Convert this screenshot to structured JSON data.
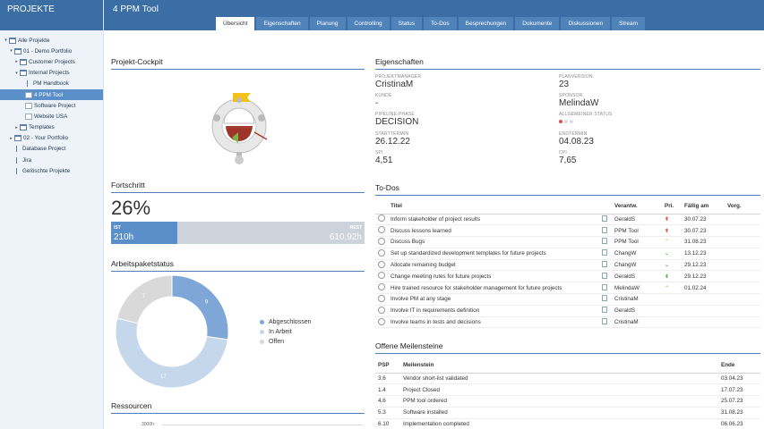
{
  "sidebar": {
    "title": "PROJEKTE",
    "items": [
      {
        "label": "Alle Projekte",
        "twisty": "▾",
        "icon": "folder",
        "indent": 0
      },
      {
        "label": "01 - Demo Portfolio",
        "twisty": "▾",
        "icon": "folder",
        "indent": 1
      },
      {
        "label": "Customer Projects",
        "twisty": "▸",
        "icon": "folder",
        "indent": 2
      },
      {
        "label": "Internal Projects",
        "twisty": "▾",
        "icon": "folder",
        "indent": 2
      },
      {
        "label": "PM Handbook",
        "twisty": "",
        "icon": "proj",
        "indent": 3
      },
      {
        "label": "4 PPM Tool",
        "twisty": "",
        "icon": "doc",
        "indent": 3,
        "selected": true
      },
      {
        "label": "Software Project",
        "twisty": "",
        "icon": "doc",
        "indent": 3
      },
      {
        "label": "Website USA",
        "twisty": "",
        "icon": "doc",
        "indent": 3
      },
      {
        "label": "Templates",
        "twisty": "▸",
        "icon": "folder",
        "indent": 2
      },
      {
        "label": "02 - Your Portfolio",
        "twisty": "▸",
        "icon": "folder",
        "indent": 1
      },
      {
        "label": "Database Project",
        "twisty": "",
        "icon": "proj",
        "indent": 1
      },
      {
        "label": "Jira",
        "twisty": "",
        "icon": "proj",
        "indent": 1
      },
      {
        "label": "Gelöschte Projekte",
        "twisty": "",
        "icon": "proj",
        "indent": 1
      }
    ]
  },
  "header": {
    "title": "4 PPM Tool",
    "tabs": [
      "Übersicht",
      "Eigenschaften",
      "Planung",
      "Controlling",
      "Status",
      "To-Dos",
      "Besprechungen",
      "Dokumente",
      "Diskussionen",
      "Stream"
    ],
    "active_tab": 0
  },
  "cockpit": {
    "title": "Projekt-Cockpit"
  },
  "progress": {
    "title": "Fortschritt",
    "percent_label": "26%",
    "fraction": 0.26,
    "ist_caption": "IST",
    "ist_value": "210h",
    "rest_caption": "REST",
    "rest_value": "610,92h"
  },
  "workpackages": {
    "title": "Arbeitspaketstatus",
    "chart_data": {
      "type": "pie",
      "categories": [
        "Abgeschlossen",
        "In Arbeit",
        "Offen"
      ],
      "values": [
        9,
        17,
        7
      ],
      "colors": [
        "#7ea6d6",
        "#c5d7ea",
        "#d9d9d9"
      ],
      "label_colors": [
        "#ffffff",
        "#ffffff",
        "#ffffff"
      ]
    }
  },
  "resources": {
    "title": "Ressourcen",
    "axis_label": "3000h"
  },
  "properties": {
    "title": "Eigenschaften",
    "fields": [
      {
        "caption": "PROJEKTMANAGER",
        "value": "CristinaM"
      },
      {
        "caption": "PLANVERSION",
        "value": "23"
      },
      {
        "caption": "KUNDE",
        "value": "-"
      },
      {
        "caption": "SPONSOR",
        "value": "MelindaW"
      },
      {
        "caption": "PIPELINE-PHASE",
        "value": "DECISION"
      },
      {
        "caption": "ALLGEMEINER STATUS",
        "value": ""
      },
      {
        "caption": "STARTTERMIN",
        "value": "26.12.22"
      },
      {
        "caption": "ENDTERMIN",
        "value": "04.08.23"
      },
      {
        "caption": "SPI",
        "value": "4,51"
      },
      {
        "caption": "CPI",
        "value": "7,65"
      }
    ],
    "status_colors": [
      "#d9534f",
      "#dddddd",
      "#dddddd"
    ]
  },
  "todos": {
    "title": "To-Dos",
    "headers": [
      "Titel",
      "Verantw.",
      "Pri.",
      "Fällig am",
      "Vorg."
    ],
    "rows": [
      {
        "title": "Inform stakeholder of project results",
        "owner": "GeraldS",
        "prio": "⇞",
        "prio_color": "#d9534f",
        "due": "30.07.23"
      },
      {
        "title": "Discuss lessons learned",
        "owner": "PPM Tool",
        "prio": "⇞",
        "prio_color": "#d9534f",
        "due": "30.07.23"
      },
      {
        "title": "Discuss Bugs",
        "owner": "PPM Tool",
        "prio": "⌃",
        "prio_color": "#f0ad4e",
        "due": "31.08.23"
      },
      {
        "title": "Set up standardized development templates for future projects",
        "owner": "ChangW",
        "prio": "⌄",
        "prio_color": "#5cb85c",
        "due": "13.12.23"
      },
      {
        "title": "Allocate remaining budget",
        "owner": "ChangW",
        "prio": "⌄",
        "prio_color": "#5cb85c",
        "due": "29.12.23"
      },
      {
        "title": "Change meeting rules for future projects",
        "owner": "GeraldS",
        "prio": "⇟",
        "prio_color": "#5cb85c",
        "due": "29.12.23"
      },
      {
        "title": "Hire trained resource for stakeholder management for future projects",
        "owner": "MelindaW",
        "prio": "⌃",
        "prio_color": "#f0ad4e",
        "due": "01.02.24"
      },
      {
        "title": "Involve PM at any stage",
        "owner": "CristinaM",
        "prio": "",
        "prio_color": "#999999",
        "due": ""
      },
      {
        "title": "Involve IT in requirements definition",
        "owner": "GeraldS",
        "prio": "",
        "prio_color": "#999999",
        "due": ""
      },
      {
        "title": "Involve teams in tests and decisions",
        "owner": "CristinaM",
        "prio": "",
        "prio_color": "#999999",
        "due": ""
      }
    ]
  },
  "milestones": {
    "title": "Offene Meilensteine",
    "headers": [
      "PSP",
      "Meilenstein",
      "Ende"
    ],
    "rows": [
      {
        "psp": "3.6",
        "name": "Vendor short-list validated",
        "end": "03.04.23"
      },
      {
        "psp": "1.4",
        "name": "Project Closed",
        "end": "17.07.23"
      },
      {
        "psp": "4.6",
        "name": "PPM tool ordered",
        "end": "25.07.23"
      },
      {
        "psp": "5.3",
        "name": "Software installed",
        "end": "31.08.23"
      },
      {
        "psp": "6.10",
        "name": "Implementation completed",
        "end": "06.06.23"
      }
    ]
  }
}
